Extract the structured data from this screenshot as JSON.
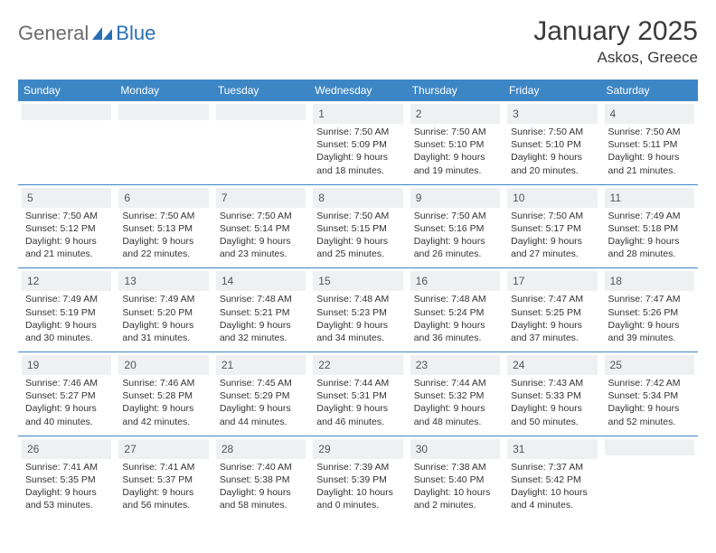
{
  "logo": {
    "general": "General",
    "blue": "Blue",
    "shape_color": "#2a6fb5"
  },
  "title": "January 2025",
  "location": "Askos, Greece",
  "colors": {
    "header_bg": "#3d86c6",
    "header_fg": "#ffffff",
    "row_divider": "#3d86c6",
    "daynum_bg": "#eef0f2",
    "text": "#333333",
    "logo_gray": "#6b6b6b",
    "logo_blue": "#2a6fb5",
    "page_bg": "#ffffff"
  },
  "typography": {
    "title_fontsize": 30,
    "location_fontsize": 17,
    "header_fontsize": 12,
    "daynum_fontsize": 12,
    "info_fontsize": 10.5
  },
  "day_headers": [
    "Sunday",
    "Monday",
    "Tuesday",
    "Wednesday",
    "Thursday",
    "Friday",
    "Saturday"
  ],
  "weeks": [
    [
      {
        "empty": true
      },
      {
        "empty": true
      },
      {
        "empty": true
      },
      {
        "day": "1",
        "sunrise": "Sunrise: 7:50 AM",
        "sunset": "Sunset: 5:09 PM",
        "daylight1": "Daylight: 9 hours",
        "daylight2": "and 18 minutes."
      },
      {
        "day": "2",
        "sunrise": "Sunrise: 7:50 AM",
        "sunset": "Sunset: 5:10 PM",
        "daylight1": "Daylight: 9 hours",
        "daylight2": "and 19 minutes."
      },
      {
        "day": "3",
        "sunrise": "Sunrise: 7:50 AM",
        "sunset": "Sunset: 5:10 PM",
        "daylight1": "Daylight: 9 hours",
        "daylight2": "and 20 minutes."
      },
      {
        "day": "4",
        "sunrise": "Sunrise: 7:50 AM",
        "sunset": "Sunset: 5:11 PM",
        "daylight1": "Daylight: 9 hours",
        "daylight2": "and 21 minutes."
      }
    ],
    [
      {
        "day": "5",
        "sunrise": "Sunrise: 7:50 AM",
        "sunset": "Sunset: 5:12 PM",
        "daylight1": "Daylight: 9 hours",
        "daylight2": "and 21 minutes."
      },
      {
        "day": "6",
        "sunrise": "Sunrise: 7:50 AM",
        "sunset": "Sunset: 5:13 PM",
        "daylight1": "Daylight: 9 hours",
        "daylight2": "and 22 minutes."
      },
      {
        "day": "7",
        "sunrise": "Sunrise: 7:50 AM",
        "sunset": "Sunset: 5:14 PM",
        "daylight1": "Daylight: 9 hours",
        "daylight2": "and 23 minutes."
      },
      {
        "day": "8",
        "sunrise": "Sunrise: 7:50 AM",
        "sunset": "Sunset: 5:15 PM",
        "daylight1": "Daylight: 9 hours",
        "daylight2": "and 25 minutes."
      },
      {
        "day": "9",
        "sunrise": "Sunrise: 7:50 AM",
        "sunset": "Sunset: 5:16 PM",
        "daylight1": "Daylight: 9 hours",
        "daylight2": "and 26 minutes."
      },
      {
        "day": "10",
        "sunrise": "Sunrise: 7:50 AM",
        "sunset": "Sunset: 5:17 PM",
        "daylight1": "Daylight: 9 hours",
        "daylight2": "and 27 minutes."
      },
      {
        "day": "11",
        "sunrise": "Sunrise: 7:49 AM",
        "sunset": "Sunset: 5:18 PM",
        "daylight1": "Daylight: 9 hours",
        "daylight2": "and 28 minutes."
      }
    ],
    [
      {
        "day": "12",
        "sunrise": "Sunrise: 7:49 AM",
        "sunset": "Sunset: 5:19 PM",
        "daylight1": "Daylight: 9 hours",
        "daylight2": "and 30 minutes."
      },
      {
        "day": "13",
        "sunrise": "Sunrise: 7:49 AM",
        "sunset": "Sunset: 5:20 PM",
        "daylight1": "Daylight: 9 hours",
        "daylight2": "and 31 minutes."
      },
      {
        "day": "14",
        "sunrise": "Sunrise: 7:48 AM",
        "sunset": "Sunset: 5:21 PM",
        "daylight1": "Daylight: 9 hours",
        "daylight2": "and 32 minutes."
      },
      {
        "day": "15",
        "sunrise": "Sunrise: 7:48 AM",
        "sunset": "Sunset: 5:23 PM",
        "daylight1": "Daylight: 9 hours",
        "daylight2": "and 34 minutes."
      },
      {
        "day": "16",
        "sunrise": "Sunrise: 7:48 AM",
        "sunset": "Sunset: 5:24 PM",
        "daylight1": "Daylight: 9 hours",
        "daylight2": "and 36 minutes."
      },
      {
        "day": "17",
        "sunrise": "Sunrise: 7:47 AM",
        "sunset": "Sunset: 5:25 PM",
        "daylight1": "Daylight: 9 hours",
        "daylight2": "and 37 minutes."
      },
      {
        "day": "18",
        "sunrise": "Sunrise: 7:47 AM",
        "sunset": "Sunset: 5:26 PM",
        "daylight1": "Daylight: 9 hours",
        "daylight2": "and 39 minutes."
      }
    ],
    [
      {
        "day": "19",
        "sunrise": "Sunrise: 7:46 AM",
        "sunset": "Sunset: 5:27 PM",
        "daylight1": "Daylight: 9 hours",
        "daylight2": "and 40 minutes."
      },
      {
        "day": "20",
        "sunrise": "Sunrise: 7:46 AM",
        "sunset": "Sunset: 5:28 PM",
        "daylight1": "Daylight: 9 hours",
        "daylight2": "and 42 minutes."
      },
      {
        "day": "21",
        "sunrise": "Sunrise: 7:45 AM",
        "sunset": "Sunset: 5:29 PM",
        "daylight1": "Daylight: 9 hours",
        "daylight2": "and 44 minutes."
      },
      {
        "day": "22",
        "sunrise": "Sunrise: 7:44 AM",
        "sunset": "Sunset: 5:31 PM",
        "daylight1": "Daylight: 9 hours",
        "daylight2": "and 46 minutes."
      },
      {
        "day": "23",
        "sunrise": "Sunrise: 7:44 AM",
        "sunset": "Sunset: 5:32 PM",
        "daylight1": "Daylight: 9 hours",
        "daylight2": "and 48 minutes."
      },
      {
        "day": "24",
        "sunrise": "Sunrise: 7:43 AM",
        "sunset": "Sunset: 5:33 PM",
        "daylight1": "Daylight: 9 hours",
        "daylight2": "and 50 minutes."
      },
      {
        "day": "25",
        "sunrise": "Sunrise: 7:42 AM",
        "sunset": "Sunset: 5:34 PM",
        "daylight1": "Daylight: 9 hours",
        "daylight2": "and 52 minutes."
      }
    ],
    [
      {
        "day": "26",
        "sunrise": "Sunrise: 7:41 AM",
        "sunset": "Sunset: 5:35 PM",
        "daylight1": "Daylight: 9 hours",
        "daylight2": "and 53 minutes."
      },
      {
        "day": "27",
        "sunrise": "Sunrise: 7:41 AM",
        "sunset": "Sunset: 5:37 PM",
        "daylight1": "Daylight: 9 hours",
        "daylight2": "and 56 minutes."
      },
      {
        "day": "28",
        "sunrise": "Sunrise: 7:40 AM",
        "sunset": "Sunset: 5:38 PM",
        "daylight1": "Daylight: 9 hours",
        "daylight2": "and 58 minutes."
      },
      {
        "day": "29",
        "sunrise": "Sunrise: 7:39 AM",
        "sunset": "Sunset: 5:39 PM",
        "daylight1": "Daylight: 10 hours",
        "daylight2": "and 0 minutes."
      },
      {
        "day": "30",
        "sunrise": "Sunrise: 7:38 AM",
        "sunset": "Sunset: 5:40 PM",
        "daylight1": "Daylight: 10 hours",
        "daylight2": "and 2 minutes."
      },
      {
        "day": "31",
        "sunrise": "Sunrise: 7:37 AM",
        "sunset": "Sunset: 5:42 PM",
        "daylight1": "Daylight: 10 hours",
        "daylight2": "and 4 minutes."
      },
      {
        "empty": true
      }
    ]
  ]
}
